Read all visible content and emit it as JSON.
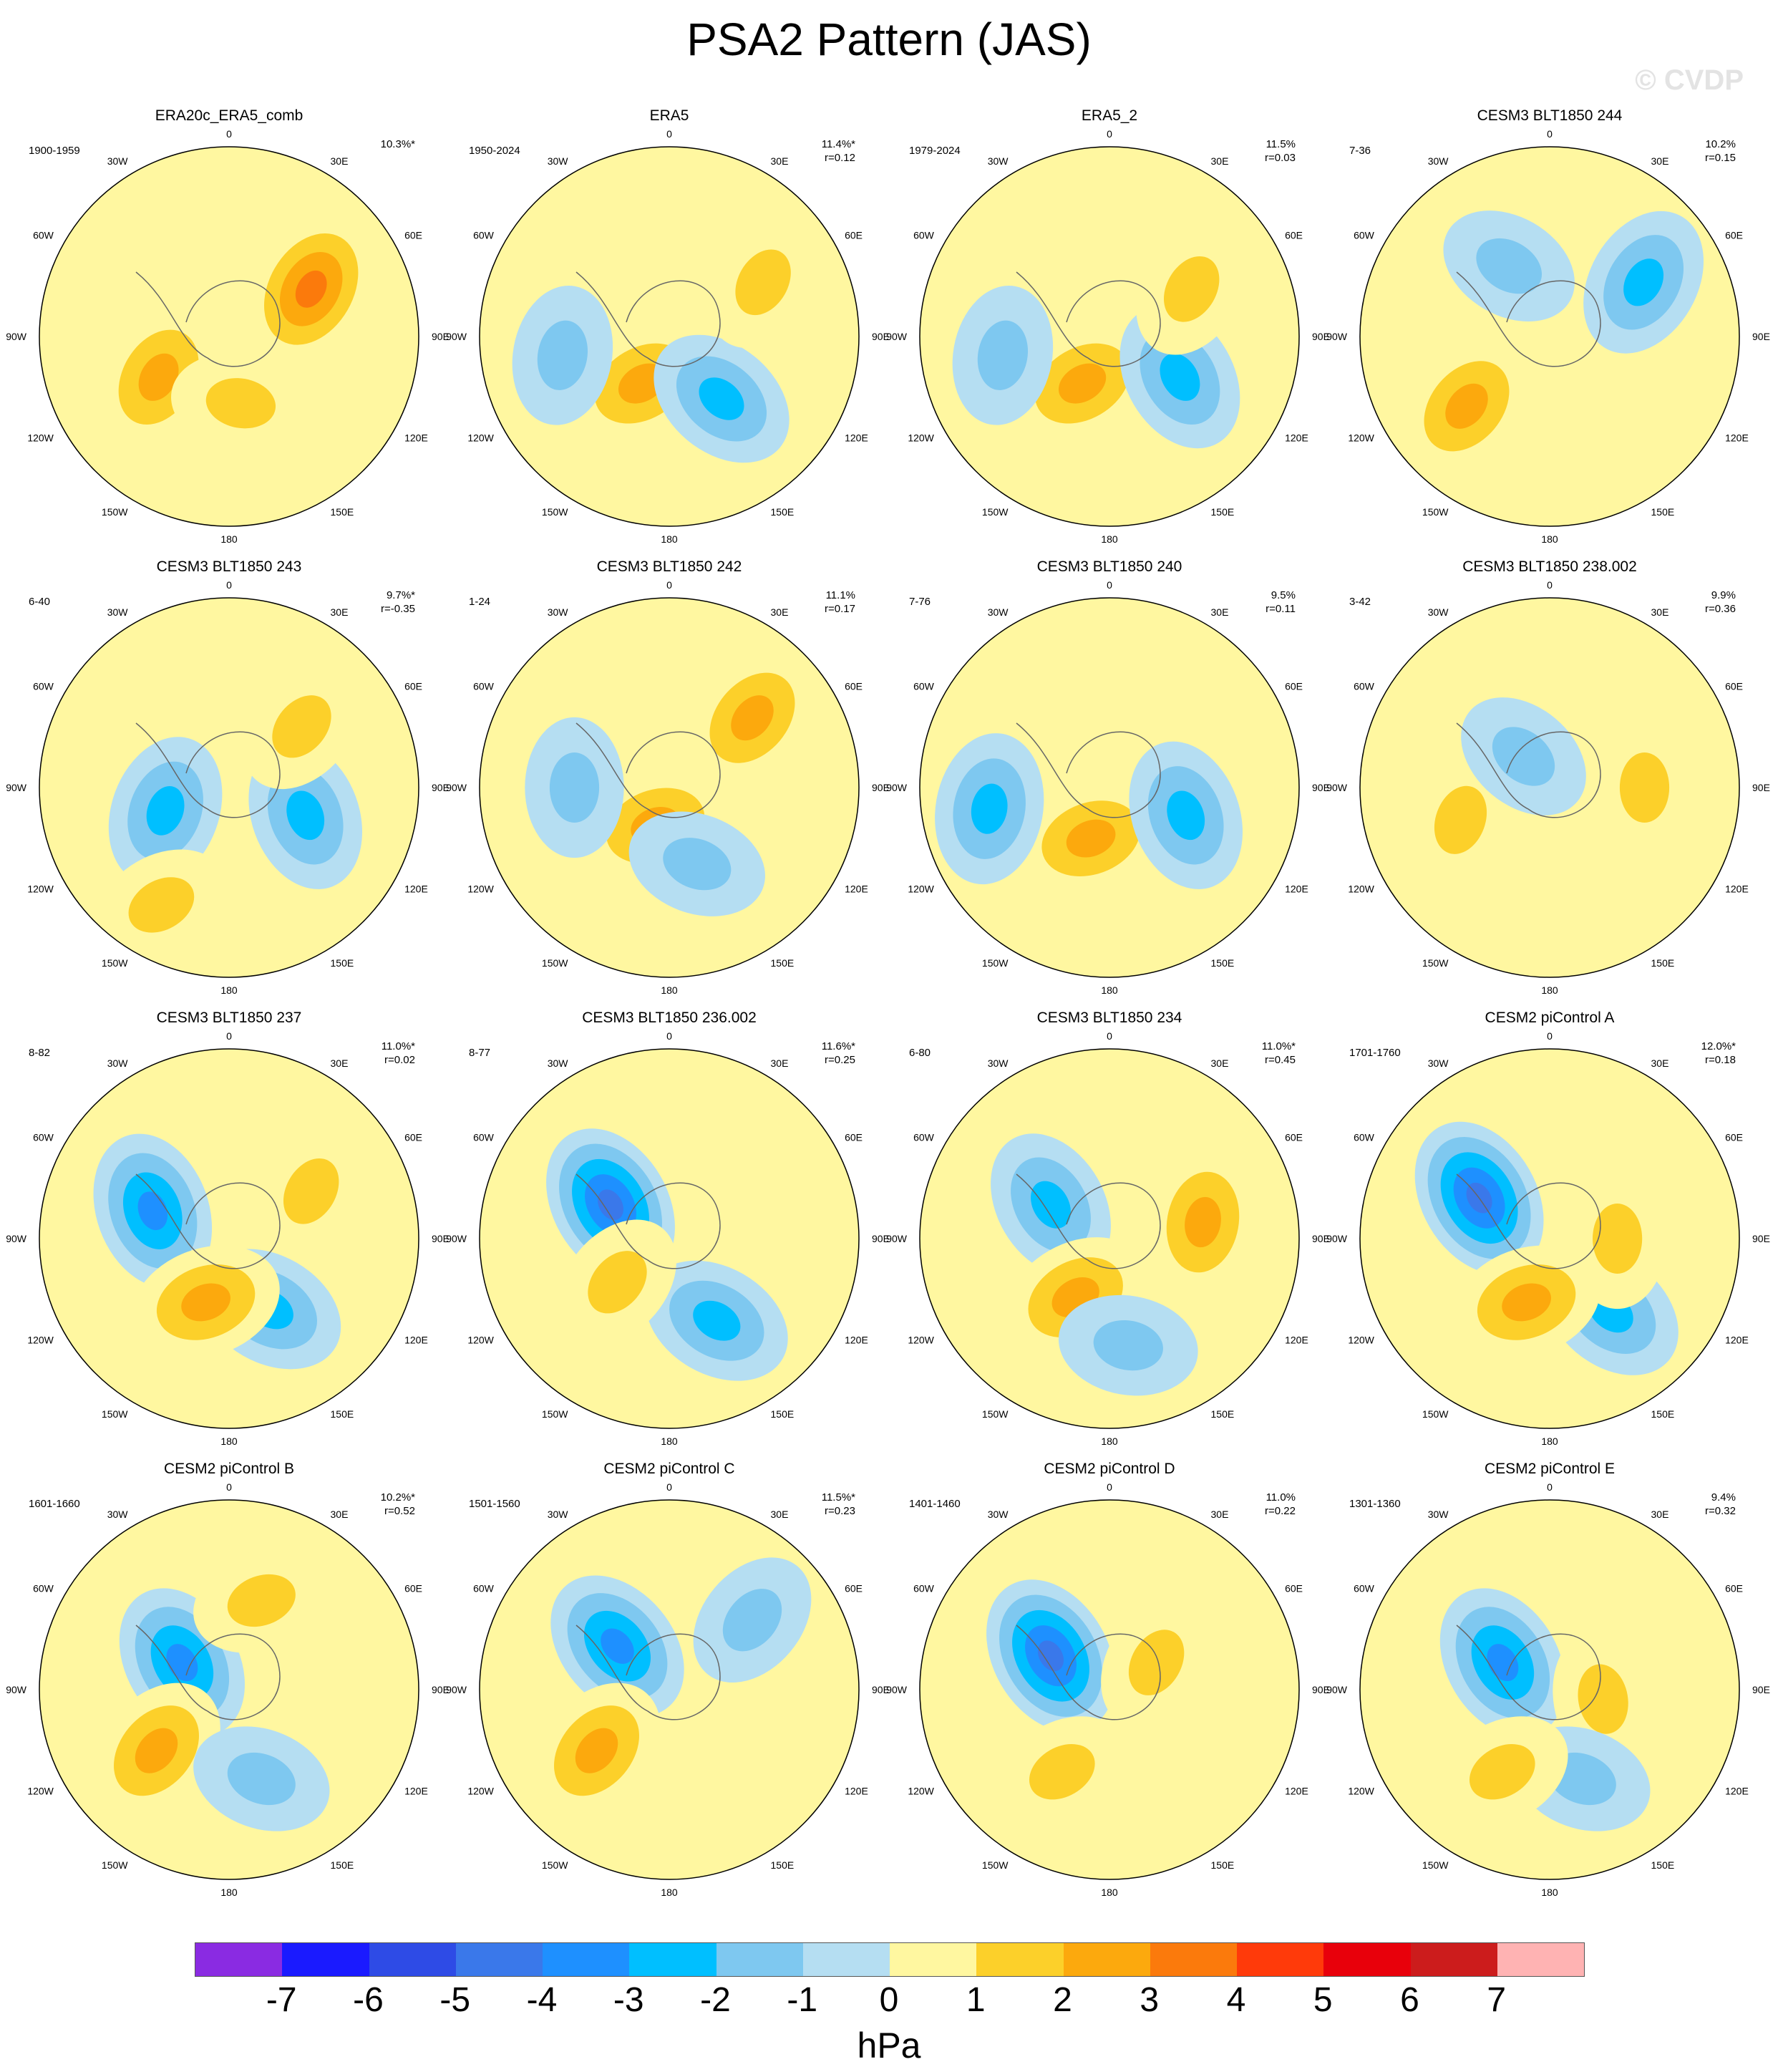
{
  "title": "PSA2 Pattern (JAS)",
  "watermark": "© CVDP",
  "lon_labels": {
    "top": "0",
    "30w": "30W",
    "30e": "30E",
    "60w": "60W",
    "60e": "60E",
    "90w": "90W",
    "90e": "90E",
    "120w": "120W",
    "120e": "120E",
    "150w": "150W",
    "150e": "150E",
    "bottom": "180"
  },
  "panels": [
    {
      "title": "ERA20c_ERA5_comb",
      "period": "1900-1959",
      "pct": "10.3%*",
      "r": ""
    },
    {
      "title": "ERA5",
      "period": "1950-2024",
      "pct": "11.4%*",
      "r": "r=0.12"
    },
    {
      "title": "ERA5_2",
      "period": "1979-2024",
      "pct": "11.5%",
      "r": "r=0.03"
    },
    {
      "title": "CESM3 BLT1850 244",
      "period": "7-36",
      "pct": "10.2%",
      "r": "r=0.15"
    },
    {
      "title": "CESM3 BLT1850 243",
      "period": "6-40",
      "pct": "9.7%*",
      "r": "r=-0.35"
    },
    {
      "title": "CESM3 BLT1850 242",
      "period": "1-24",
      "pct": "11.1%",
      "r": "r=0.17"
    },
    {
      "title": "CESM3 BLT1850 240",
      "period": "7-76",
      "pct": "9.5%",
      "r": "r=0.11"
    },
    {
      "title": "CESM3 BLT1850 238.002",
      "period": "3-42",
      "pct": "9.9%",
      "r": "r=0.36"
    },
    {
      "title": "CESM3 BLT1850 237",
      "period": "8-82",
      "pct": "11.0%*",
      "r": "r=0.02"
    },
    {
      "title": "CESM3 BLT1850 236.002",
      "period": "8-77",
      "pct": "11.6%*",
      "r": "r=0.25"
    },
    {
      "title": "CESM3 BLT1850 234",
      "period": "6-80",
      "pct": "11.0%*",
      "r": "r=0.45"
    },
    {
      "title": "CESM2 piControl A",
      "period": "1701-1760",
      "pct": "12.0%*",
      "r": "r=0.18"
    },
    {
      "title": "CESM2 piControl B",
      "period": "1601-1660",
      "pct": "10.2%*",
      "r": "r=0.52"
    },
    {
      "title": "CESM2 piControl C",
      "period": "1501-1560",
      "pct": "11.5%*",
      "r": "r=0.23"
    },
    {
      "title": "CESM2 piControl D",
      "period": "1401-1460",
      "pct": "11.0%",
      "r": "r=0.22"
    },
    {
      "title": "CESM2 piControl E",
      "period": "1301-1360",
      "pct": "9.4%",
      "r": "r=0.32"
    }
  ],
  "colorbar": {
    "colors": [
      "#8a2be2",
      "#1a1aff",
      "#2e4be6",
      "#3a78ea",
      "#1e90ff",
      "#00bfff",
      "#7ec8f0",
      "#b5def2",
      "#fff7a0",
      "#fcd02a",
      "#fca90d",
      "#fb7a0c",
      "#ff3a0a",
      "#e8000b",
      "#cc1c1c",
      "#ffb3b3"
    ],
    "ticks": [
      "-7",
      "-6",
      "-5",
      "-4",
      "-3",
      "-2",
      "-1",
      "0",
      "1",
      "2",
      "3",
      "4",
      "5",
      "6",
      "7"
    ],
    "units": "hPa"
  },
  "anomaly_centers": [
    [
      {
        "lon": 60,
        "lat": -55,
        "v": 3.5
      },
      {
        "lon": -120,
        "lat": -60,
        "v": 2.5
      },
      {
        "lon": 170,
        "lat": -65,
        "v": 1.5
      }
    ],
    [
      {
        "lon": -150,
        "lat": -70,
        "v": 2.5
      },
      {
        "lon": -100,
        "lat": -50,
        "v": -1.5
      },
      {
        "lon": 140,
        "lat": -60,
        "v": -2.5
      },
      {
        "lon": 60,
        "lat": -50,
        "v": 1.5
      }
    ],
    [
      {
        "lon": -150,
        "lat": -70,
        "v": 2.5
      },
      {
        "lon": -100,
        "lat": -50,
        "v": -1.5
      },
      {
        "lon": 120,
        "lat": -60,
        "v": -2.5
      },
      {
        "lon": 60,
        "lat": -55,
        "v": 1.5
      }
    ],
    [
      {
        "lon": -130,
        "lat": -50,
        "v": 3.0
      },
      {
        "lon": 60,
        "lat": -50,
        "v": -2.5
      },
      {
        "lon": -30,
        "lat": -60,
        "v": -2.0
      }
    ],
    [
      {
        "lon": -110,
        "lat": -65,
        "v": -2.5
      },
      {
        "lon": 110,
        "lat": -60,
        "v": -2.5
      },
      {
        "lon": 50,
        "lat": -55,
        "v": 1.5
      },
      {
        "lon": -150,
        "lat": -40,
        "v": 1.5
      }
    ],
    [
      {
        "lon": -160,
        "lat": -75,
        "v": 3.0
      },
      {
        "lon": 50,
        "lat": -50,
        "v": 3.0
      },
      {
        "lon": -90,
        "lat": -55,
        "v": -2.0
      },
      {
        "lon": 160,
        "lat": -60,
        "v": -2.0
      }
    ],
    [
      {
        "lon": -160,
        "lat": -70,
        "v": 3.0
      },
      {
        "lon": 110,
        "lat": -60,
        "v": -2.5
      },
      {
        "lon": -100,
        "lat": -45,
        "v": -2.5
      }
    ],
    [
      {
        "lon": -110,
        "lat": -55,
        "v": 2.0
      },
      {
        "lon": 90,
        "lat": -55,
        "v": 2.0
      },
      {
        "lon": -40,
        "lat": -75,
        "v": -1.5
      }
    ],
    [
      {
        "lon": -70,
        "lat": -60,
        "v": -4.0
      },
      {
        "lon": 150,
        "lat": -60,
        "v": -3.0
      },
      {
        "lon": -160,
        "lat": -65,
        "v": 2.5
      },
      {
        "lon": 60,
        "lat": -55,
        "v": 1.5
      }
    ],
    [
      {
        "lon": -60,
        "lat": -65,
        "v": -4.5
      },
      {
        "lon": 150,
        "lat": -55,
        "v": -3.0
      },
      {
        "lon": -130,
        "lat": -65,
        "v": 2.0
      }
    ],
    [
      {
        "lon": -60,
        "lat": -65,
        "v": -3.0
      },
      {
        "lon": -150,
        "lat": -65,
        "v": 3.0
      },
      {
        "lon": 80,
        "lat": -55,
        "v": 2.5
      },
      {
        "lon": 170,
        "lat": -50,
        "v": -1.5
      }
    ],
    [
      {
        "lon": -60,
        "lat": -60,
        "v": -4.5
      },
      {
        "lon": 140,
        "lat": -55,
        "v": -3.0
      },
      {
        "lon": 90,
        "lat": -65,
        "v": 2.0
      },
      {
        "lon": -160,
        "lat": -65,
        "v": 2.5
      }
    ],
    [
      {
        "lon": -60,
        "lat": -70,
        "v": -3.5
      },
      {
        "lon": -130,
        "lat": -55,
        "v": 2.5
      },
      {
        "lon": 160,
        "lat": -55,
        "v": -1.5
      },
      {
        "lon": 20,
        "lat": -55,
        "v": 1.5
      }
    ],
    [
      {
        "lon": -50,
        "lat": -65,
        "v": -4.0
      },
      {
        "lon": -130,
        "lat": -55,
        "v": 3.0
      },
      {
        "lon": 50,
        "lat": -50,
        "v": -1.5
      }
    ],
    [
      {
        "lon": -60,
        "lat": -65,
        "v": -4.5
      },
      {
        "lon": 60,
        "lat": -70,
        "v": 1.5
      },
      {
        "lon": -150,
        "lat": -55,
        "v": 1.5
      }
    ],
    [
      {
        "lon": -60,
        "lat": -70,
        "v": -3.5
      },
      {
        "lon": 100,
        "lat": -70,
        "v": 2.0
      },
      {
        "lon": 160,
        "lat": -55,
        "v": -2.0
      },
      {
        "lon": -150,
        "lat": -55,
        "v": 1.5
      }
    ]
  ]
}
